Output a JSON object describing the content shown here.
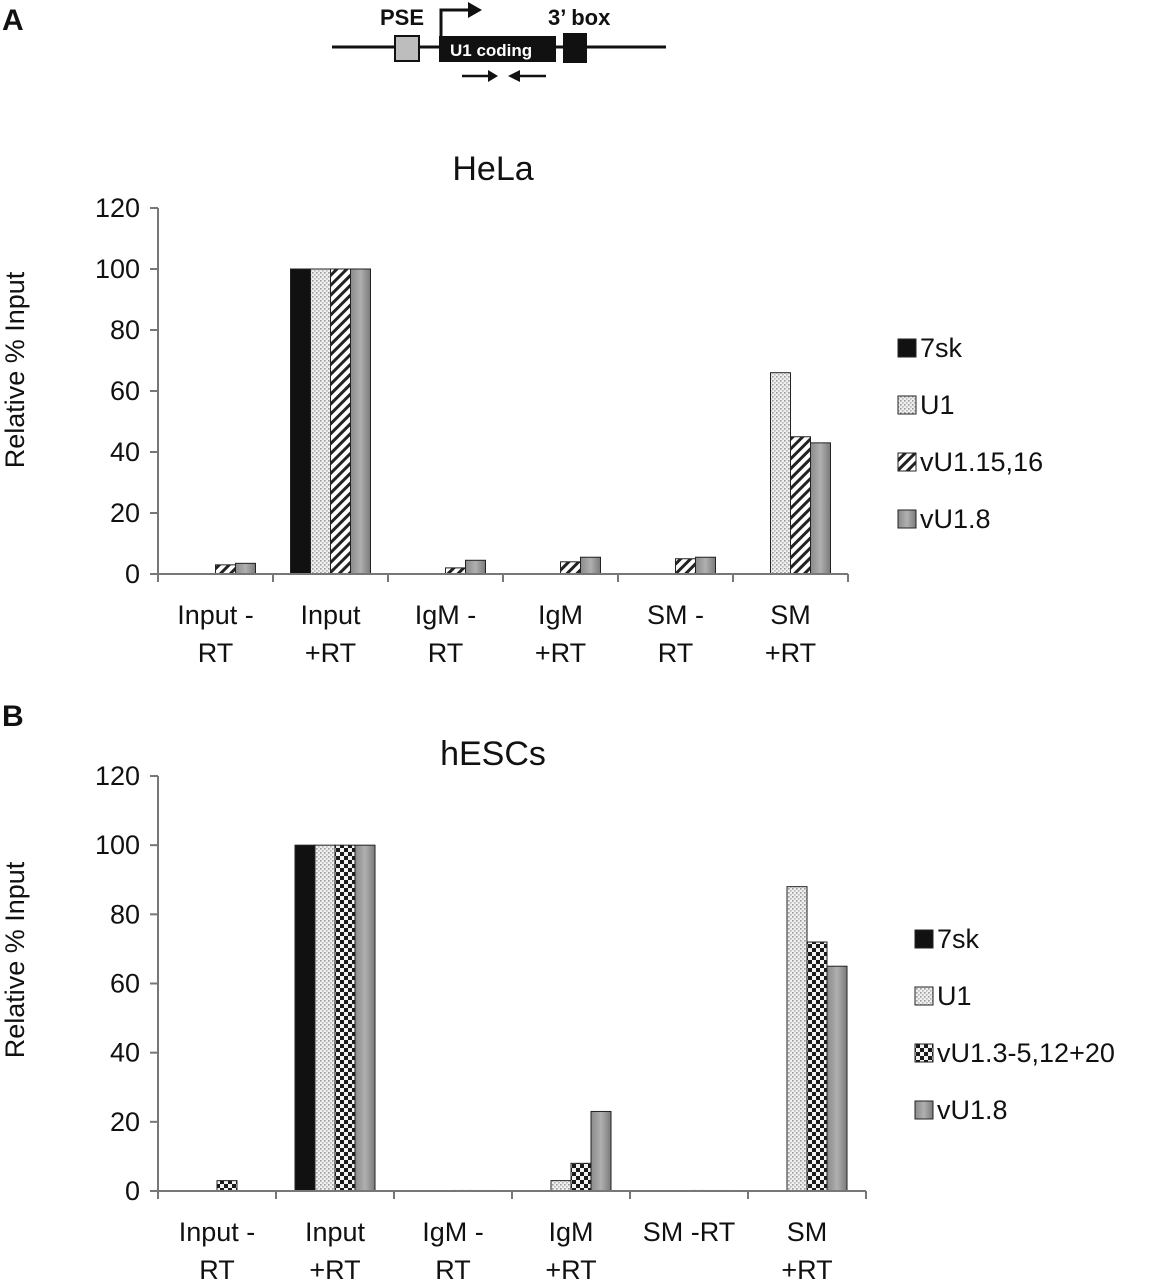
{
  "panels": [
    "A",
    "B"
  ],
  "schematic": {
    "pse_label": "PSE",
    "coding_label": "U1 coding",
    "box_label": "3’ box"
  },
  "chart_data": [
    {
      "type": "bar",
      "title": "HeLa",
      "ylabel": "Relative % Input",
      "xlabel": "",
      "ylim": [
        0,
        120
      ],
      "yticks": [
        0,
        20,
        40,
        60,
        80,
        100,
        120
      ],
      "categories": [
        [
          "Input -",
          "RT"
        ],
        [
          "Input",
          "+RT"
        ],
        [
          "IgM -",
          "RT"
        ],
        [
          "IgM",
          "+RT"
        ],
        [
          "SM -",
          "RT"
        ],
        [
          "SM",
          "+RT"
        ]
      ],
      "legend_position": "right",
      "series": [
        {
          "name": "7sk",
          "pattern": "solid-black",
          "values": [
            0,
            100,
            0,
            0,
            0,
            0
          ]
        },
        {
          "name": "U1",
          "pattern": "dotted-light",
          "values": [
            0,
            100,
            0,
            0,
            0,
            66
          ]
        },
        {
          "name": "vU1.15,16",
          "pattern": "diagonal-hatch",
          "values": [
            3,
            100,
            2,
            4,
            5,
            45
          ]
        },
        {
          "name": "vU1.8",
          "pattern": "solid-gray",
          "values": [
            3.5,
            100,
            4.5,
            5.5,
            5.5,
            43
          ]
        }
      ]
    },
    {
      "type": "bar",
      "title": "hESCs",
      "ylabel": "Relative % Input",
      "xlabel": "",
      "ylim": [
        0,
        120
      ],
      "yticks": [
        0,
        20,
        40,
        60,
        80,
        100,
        120
      ],
      "categories": [
        [
          "Input -",
          "RT"
        ],
        [
          "Input",
          "+RT"
        ],
        [
          "IgM -",
          "RT"
        ],
        [
          "IgM",
          "+RT"
        ],
        [
          "SM -RT",
          ""
        ],
        [
          "SM",
          "+RT"
        ]
      ],
      "legend_position": "right",
      "series": [
        {
          "name": "7sk",
          "pattern": "solid-black",
          "values": [
            0,
            100,
            0,
            0,
            0,
            0
          ]
        },
        {
          "name": "U1",
          "pattern": "dotted-light",
          "values": [
            0,
            100,
            0,
            3,
            0,
            88
          ]
        },
        {
          "name": "vU1.3-5,12+20",
          "pattern": "checker",
          "values": [
            3,
            100,
            0.3,
            8,
            0.3,
            72
          ]
        },
        {
          "name": "vU1.8",
          "pattern": "solid-gray",
          "values": [
            0,
            100,
            0.3,
            23,
            0.3,
            65
          ]
        }
      ]
    }
  ]
}
